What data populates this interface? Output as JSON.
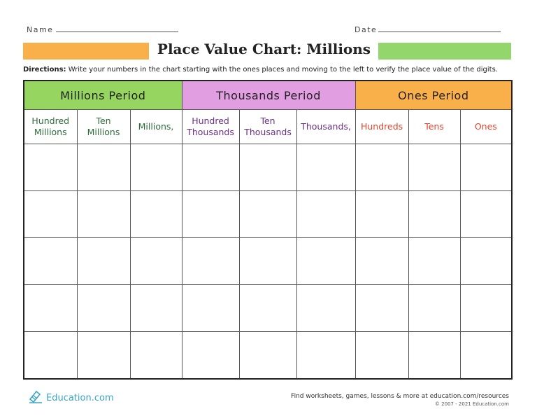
{
  "header": {
    "name_label": "Name",
    "date_label": "Date",
    "title": "Place Value Chart: Millions",
    "bar_colors": {
      "left": "#f9b04b",
      "right": "#93d66b"
    }
  },
  "directions": {
    "label": "Directions:",
    "text": " Write your numbers in the chart starting with the ones places and moving to the left to verify the place value of the digits."
  },
  "chart": {
    "periods": [
      {
        "label": "Millions Period",
        "color": "#96d55f"
      },
      {
        "label": "Thousands Period",
        "color": "#e19ee0"
      },
      {
        "label": "Ones Period",
        "color": "#f9b04b"
      }
    ],
    "columns": [
      {
        "line1": "Hundred",
        "line2": "Millions",
        "color": "#2e6b3a"
      },
      {
        "line1": "Ten",
        "line2": "Millions",
        "color": "#2e6b3a"
      },
      {
        "line1": "",
        "line2": "Millions,",
        "color": "#2e6b3a"
      },
      {
        "line1": "Hundred",
        "line2": "Thousands",
        "color": "#6b2f86"
      },
      {
        "line1": "Ten",
        "line2": "Thousands",
        "color": "#6b2f86"
      },
      {
        "line1": "",
        "line2": "Thousands,",
        "color": "#6b2f86"
      },
      {
        "line1": "",
        "line2": "Hundreds",
        "color": "#e0452f"
      },
      {
        "line1": "",
        "line2": "Tens",
        "color": "#e0452f"
      },
      {
        "line1": "",
        "line2": "Ones",
        "color": "#e0452f"
      }
    ],
    "rows": 5
  },
  "footer": {
    "logo_text": "Education.com",
    "logo_icon": "education-pencil-icon",
    "tagline": "Find worksheets, games, lessons & more at education.com/resources",
    "copyright": "© 2007 - 2021 Education.com"
  }
}
